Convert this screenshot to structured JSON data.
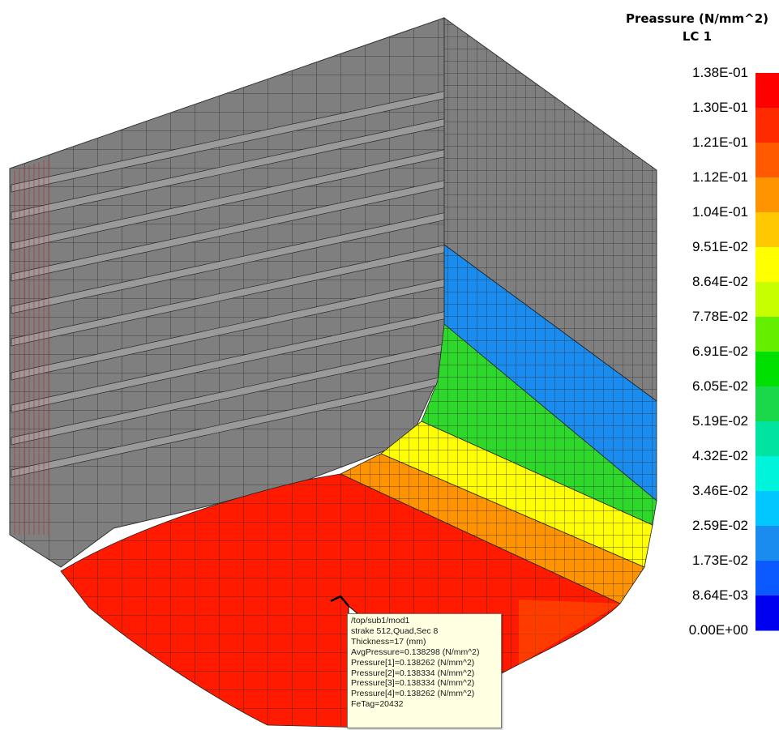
{
  "legend": {
    "title": "Preassure (N/mm^2)",
    "subtitle": "LC 1",
    "ticks": [
      "1.38E-01",
      "1.30E-01",
      "1.21E-01",
      "1.12E-01",
      "1.04E-01",
      "9.51E-02",
      "8.64E-02",
      "7.78E-02",
      "6.91E-02",
      "6.05E-02",
      "5.19E-02",
      "4.32E-02",
      "3.46E-02",
      "2.59E-02",
      "1.73E-02",
      "8.64E-03",
      "0.00E+00"
    ],
    "colors": [
      "#ff0000",
      "#ff2a00",
      "#ff5a00",
      "#ff9400",
      "#ffc800",
      "#ffff00",
      "#c8ff00",
      "#64ef00",
      "#00e000",
      "#1ad84a",
      "#00e4a0",
      "#00f4dc",
      "#00c8ff",
      "#1a8cf0",
      "#0a5aff",
      "#0000f0"
    ]
  },
  "tooltip": {
    "lines": [
      "/top/sub1/mod1",
      "strake 512,Quad,Sec 8",
      "Thickness=17 (mm)",
      "AvgPressure=0.138298 (N/mm^2)",
      "Pressure[1]=0.138262 (N/mm^2)",
      "Pressure[2]=0.138334 (N/mm^2)",
      "Pressure[3]=0.138334 (N/mm^2)",
      "Pressure[4]=0.138262 (N/mm^2)",
      "FeTag=20432"
    ]
  },
  "model": {
    "structure_color": "#7f7f7f",
    "mesh_line_color": "#222222",
    "frame_line_color": "#cc2222",
    "fill_colors": {
      "side_blue": "#1a8cf0",
      "green": "#2ed82a",
      "yellow": "#ffff00",
      "orange": "#ff9400",
      "red": "#ff2200"
    }
  }
}
